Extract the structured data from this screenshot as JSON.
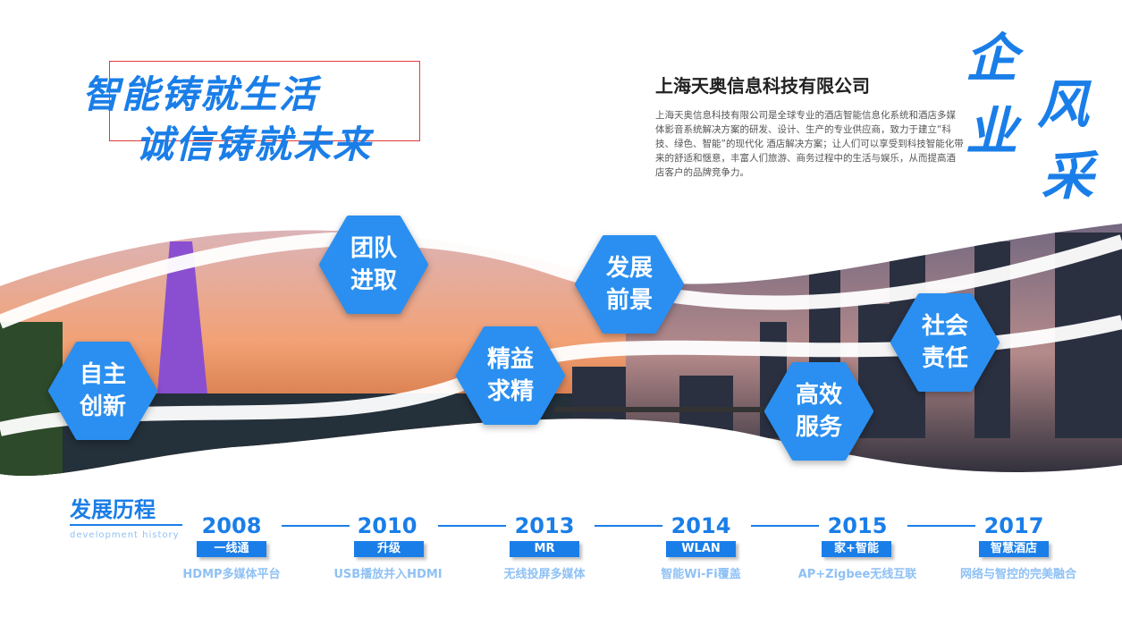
{
  "slogan": {
    "line1": "智能铸就生活",
    "line2": "诚信铸就未来"
  },
  "company": {
    "name": "上海天奥信息科技有限公司",
    "description": "上海天奥信息科技有限公司是全球专业的酒店智能信息化系统和酒店多媒体影音系统解决方案的研发、设计、生产的专业供应商，致力于建立“科技、绿色、智能”的现代化 酒店解决方案；让人们可以享受到科技智能化带来的舒适和惬意，丰富人们旅游、商务过程中的生活与娱乐，从而提高酒店客户的品牌竞争力。"
  },
  "calligraphy": {
    "c1": "企",
    "c2": "业",
    "c3": "风",
    "c4": "采"
  },
  "values": [
    {
      "label": "自主创新"
    },
    {
      "label": "团队进取"
    },
    {
      "label": "精益求精"
    },
    {
      "label": "发展前景"
    },
    {
      "label": "高效服务"
    },
    {
      "label": "社会责任"
    }
  ],
  "history": {
    "title": "发展历程",
    "subtitle": "development history",
    "items": [
      {
        "year": "2008",
        "tag": "一线通",
        "desc": "HDMP多媒体平台"
      },
      {
        "year": "2010",
        "tag": "升级",
        "desc": "USB播放并入HDMI"
      },
      {
        "year": "2013",
        "tag": "MR",
        "desc": "无线投屏多媒体"
      },
      {
        "year": "2014",
        "tag": "WLAN",
        "desc": "智能Wi-Fi覆盖"
      },
      {
        "year": "2015",
        "tag": "家+智能",
        "desc": "AP+Zigbee无线互联"
      },
      {
        "year": "2017",
        "tag": "智慧酒店",
        "desc": "网络与智控的完美融合"
      }
    ]
  },
  "colors": {
    "accent": "#1a7ee8",
    "light": "#8fc1f5",
    "frame": "#e23b3b"
  }
}
